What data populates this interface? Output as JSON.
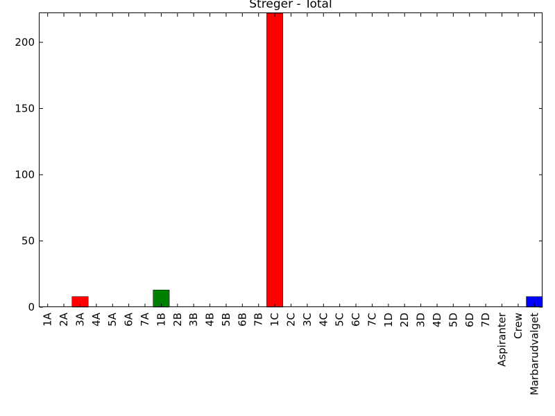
{
  "chart_data": {
    "type": "bar",
    "title": "Streger - Total",
    "xlabel": "",
    "ylabel": "",
    "ylim": [
      0,
      222
    ],
    "yticks": [
      0,
      50,
      100,
      150,
      200
    ],
    "grid": false,
    "categories": [
      "1A",
      "2A",
      "3A",
      "4A",
      "5A",
      "6A",
      "7A",
      "1B",
      "2B",
      "3B",
      "4B",
      "5B",
      "6B",
      "7B",
      "1C",
      "2C",
      "3C",
      "4C",
      "5C",
      "6C",
      "7C",
      "1D",
      "2D",
      "3D",
      "4D",
      "5D",
      "6D",
      "7D",
      "Aspiranter",
      "Crew",
      "Marbarudvalget"
    ],
    "values": [
      0,
      0,
      8,
      0,
      0,
      0,
      0,
      13,
      0,
      0,
      0,
      0,
      0,
      0,
      222,
      0,
      0,
      0,
      0,
      0,
      0,
      0,
      0,
      0,
      0,
      0,
      0,
      0,
      0,
      0,
      8
    ],
    "bar_colors": [
      "#ff0000",
      "#ff0000",
      "#ff0000",
      "#ff0000",
      "#ff0000",
      "#ff0000",
      "#ff0000",
      "#008000",
      "#008000",
      "#008000",
      "#008000",
      "#008000",
      "#008000",
      "#008000",
      "#ff0000",
      "#ff0000",
      "#ff0000",
      "#ff0000",
      "#ff0000",
      "#ff0000",
      "#ff0000",
      "#0000ff",
      "#0000ff",
      "#0000ff",
      "#0000ff",
      "#0000ff",
      "#0000ff",
      "#0000ff",
      "#000000",
      "#000000",
      "#0000ff"
    ]
  }
}
